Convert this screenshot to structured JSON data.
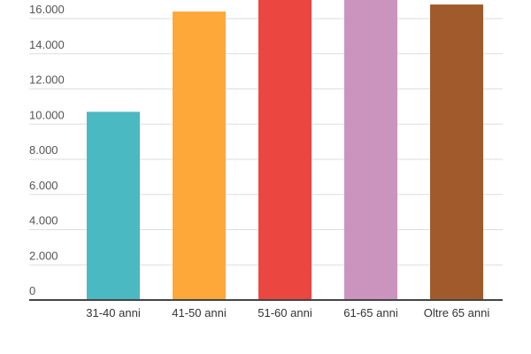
{
  "chart_data": {
    "type": "bar",
    "categories": [
      "31-40 anni",
      "41-50 anni",
      "51-60 anni",
      "61-65 anni",
      "Oltre 65 anni"
    ],
    "values": [
      10700,
      16400,
      17500,
      17500,
      16800
    ],
    "colors": [
      "#4ab9c2",
      "#fea83a",
      "#ec4641",
      "#ca94bf",
      "#a05a2b"
    ],
    "yticks": [
      "0",
      "2.000",
      "4.000",
      "6.000",
      "8.000",
      "10.000",
      "12.000",
      "14.000",
      "16.000"
    ],
    "ytick_values": [
      0,
      2000,
      4000,
      6000,
      8000,
      10000,
      12000,
      14000,
      16000
    ],
    "ylim": [
      0,
      17000
    ],
    "grid": true,
    "xlabel": "",
    "ylabel": ""
  }
}
